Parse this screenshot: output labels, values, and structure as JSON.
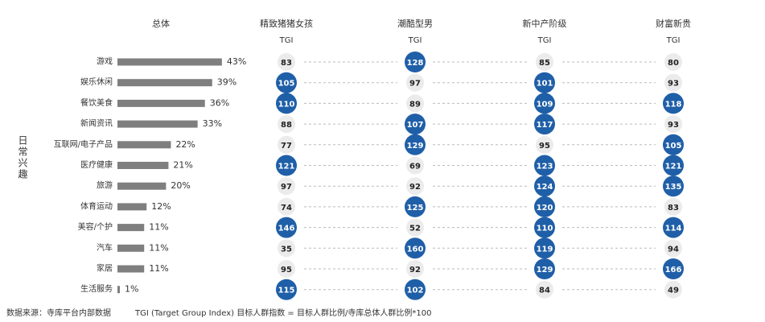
{
  "chart_data": {
    "type": "bar",
    "title": "总体",
    "group_label": "日常兴趣",
    "categories": [
      "游戏",
      "娱乐休闲",
      "餐饮美食",
      "新闻资讯",
      "互联网/电子产品",
      "医疗健康",
      "旅游",
      "体育运动",
      "美容/个护",
      "汽车",
      "家居",
      "生活服务"
    ],
    "values": [
      43,
      39,
      36,
      33,
      22,
      21,
      20,
      12,
      11,
      11,
      11,
      1
    ],
    "value_labels": [
      "43%",
      "39%",
      "36%",
      "33%",
      "22%",
      "21%",
      "20%",
      "12%",
      "11%",
      "11%",
      "11%",
      "1%"
    ],
    "color": "#7f7f7f",
    "tgi_label": "TGI",
    "highlight_color": "#1f5fa8",
    "base_color": "#ebebeb",
    "segments": [
      {
        "name": "精致猪猪女孩",
        "values": [
          83,
          105,
          110,
          88,
          77,
          121,
          97,
          74,
          146,
          35,
          95,
          115
        ]
      },
      {
        "name": "潮酷型男",
        "values": [
          128,
          97,
          89,
          107,
          129,
          69,
          92,
          125,
          52,
          160,
          92,
          102
        ]
      },
      {
        "name": "新中产阶级",
        "values": [
          85,
          101,
          109,
          117,
          95,
          123,
          124,
          120,
          110,
          119,
          129,
          84
        ]
      },
      {
        "name": "财富新贵",
        "values": [
          80,
          93,
          118,
          93,
          105,
          121,
          135,
          83,
          114,
          94,
          166,
          49
        ]
      }
    ],
    "source": "数据来源：寺库平台内部数据",
    "note": "TGI (Target Group Index) 目标人群指数 = 目标人群比例/寺库总体人群比例*100"
  }
}
